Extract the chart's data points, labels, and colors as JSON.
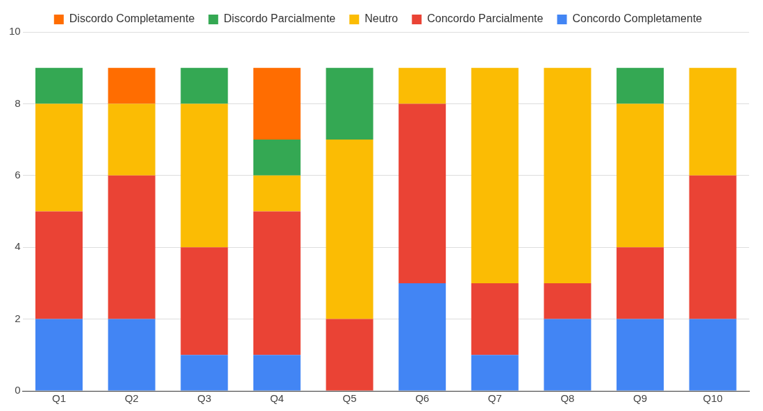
{
  "chart_data": {
    "type": "bar",
    "stacked": true,
    "categories": [
      "Q1",
      "Q2",
      "Q3",
      "Q4",
      "Q5",
      "Q6",
      "Q7",
      "Q8",
      "Q9",
      "Q10"
    ],
    "series": [
      {
        "name": "Concordo Completamente",
        "color": "#4285f4",
        "values": [
          2,
          2,
          1,
          1,
          0,
          3,
          1,
          2,
          2,
          2
        ]
      },
      {
        "name": "Concordo Parcialmente",
        "color": "#ea4335",
        "values": [
          3,
          4,
          3,
          4,
          2,
          5,
          2,
          1,
          2,
          4
        ]
      },
      {
        "name": "Neutro",
        "color": "#fbbc04",
        "values": [
          3,
          2,
          4,
          1,
          5,
          1,
          6,
          6,
          4,
          3
        ]
      },
      {
        "name": "Discordo Parcialmente",
        "color": "#34a853",
        "values": [
          1,
          0,
          1,
          1,
          2,
          0,
          0,
          0,
          1,
          0
        ]
      },
      {
        "name": "Discordo Completamente",
        "color": "#ff6d01",
        "values": [
          0,
          1,
          0,
          2,
          0,
          0,
          0,
          0,
          0,
          0
        ]
      }
    ],
    "ylim": [
      0,
      10
    ],
    "yticks": [
      0,
      2,
      4,
      6,
      8,
      10
    ],
    "grid": "y",
    "legend": "top"
  }
}
